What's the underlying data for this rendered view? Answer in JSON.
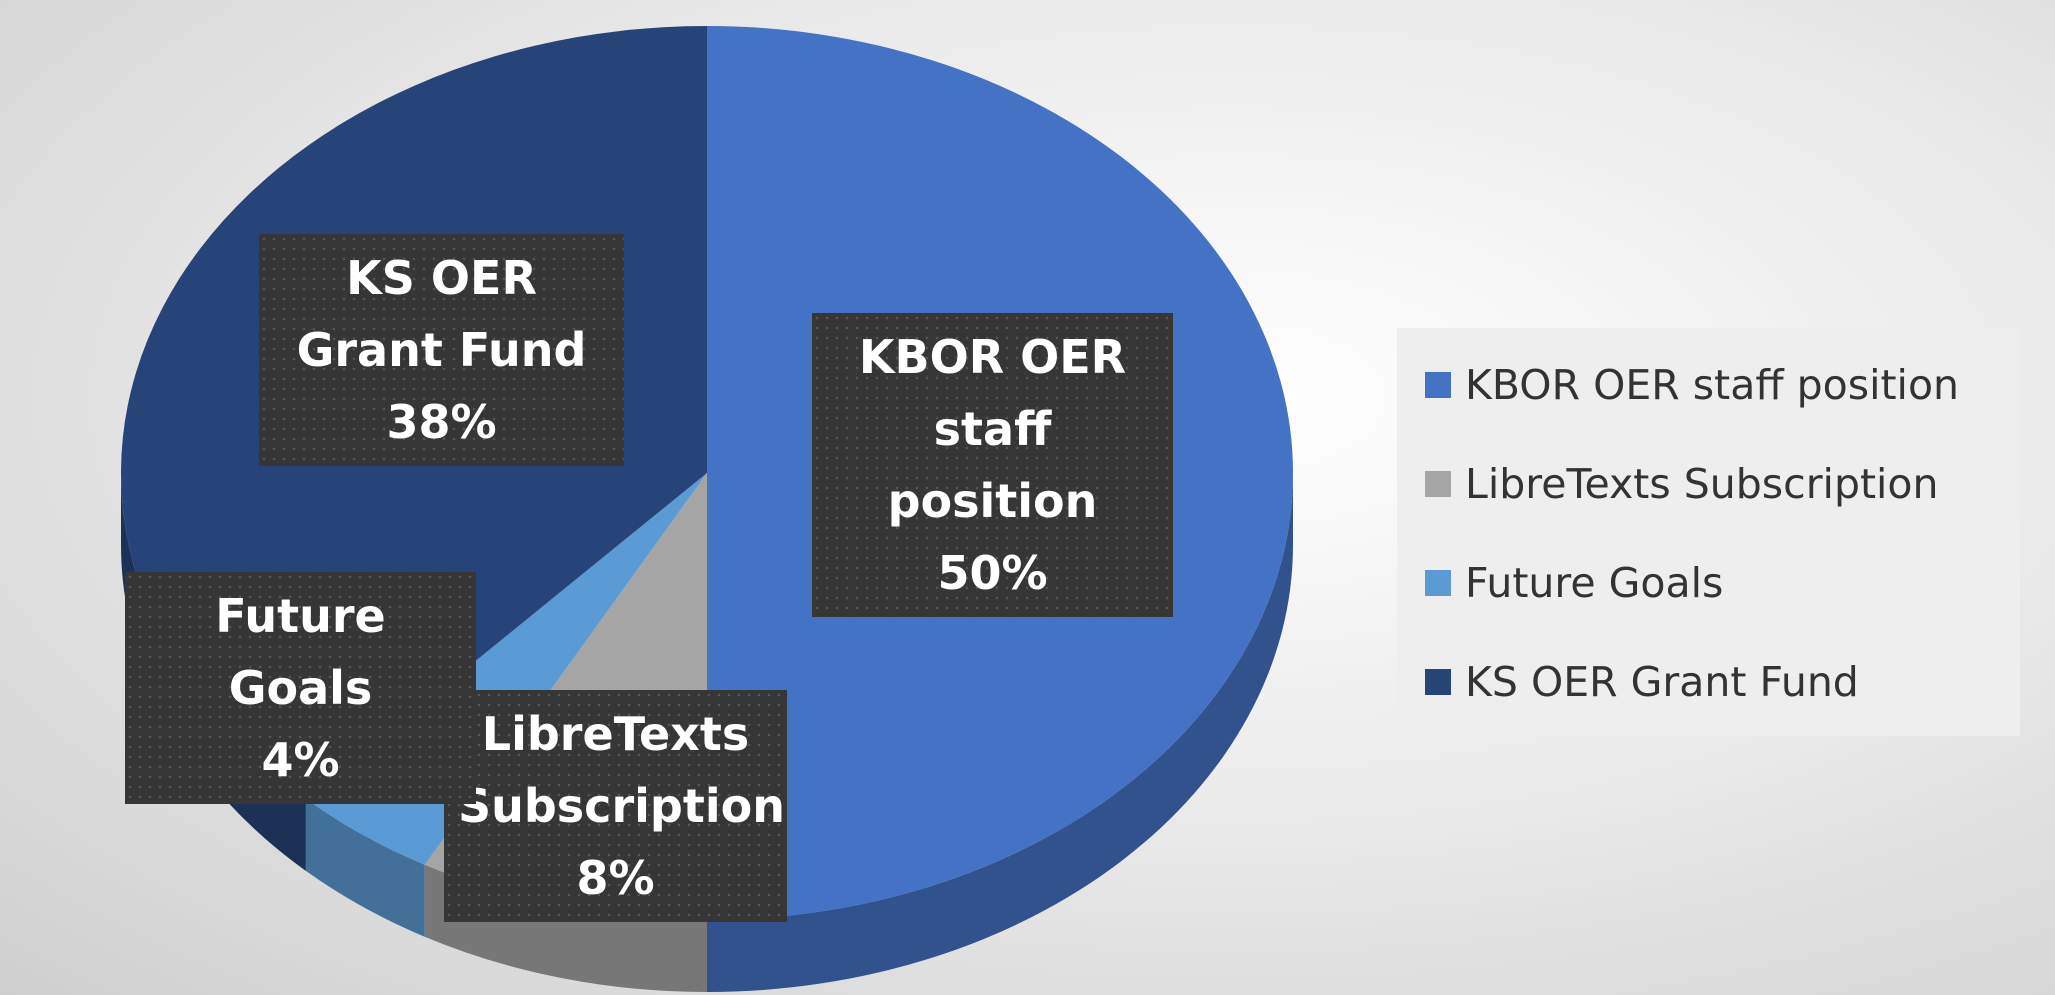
{
  "chart_data": {
    "type": "pie",
    "categories": [
      "KBOR OER staff position",
      "LibreTexts Subscription",
      "Future Goals",
      "KS OER Grant Fund"
    ],
    "values": [
      50,
      8,
      4,
      38
    ],
    "value_labels": [
      "50%",
      "8%",
      "4%",
      "38%"
    ],
    "colors": [
      "#4472c4",
      "#a5a5a5",
      "#5b9bd5",
      "#264478"
    ],
    "legend": "right"
  }
}
